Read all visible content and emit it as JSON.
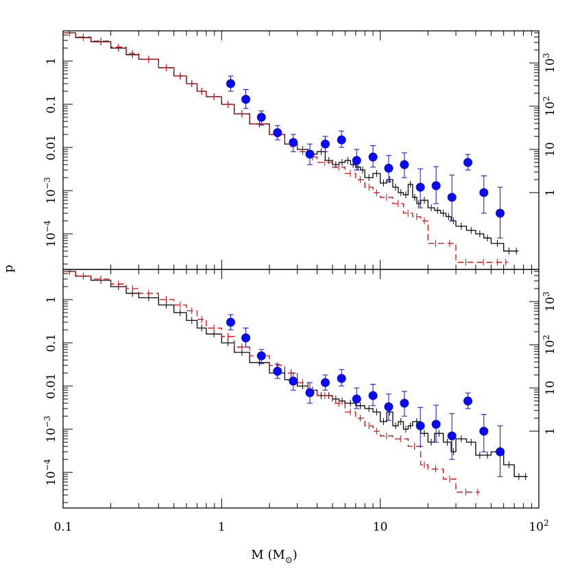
{
  "chart_data": {
    "type": "scatter",
    "xlabel": "M (M",
    "xlabel_sub": "⊙",
    "xlabel_close": ")",
    "ylabel": "p",
    "x_scale": "log",
    "xlim": [
      0.1,
      100
    ],
    "x_ticks": [
      {
        "value": 0.1,
        "label": "0.1"
      },
      {
        "value": 1,
        "label": "1"
      },
      {
        "value": 10,
        "label": "10"
      },
      {
        "value": 100,
        "label": "10",
        "sup": "2"
      }
    ],
    "colors": {
      "black": "#000000",
      "red": "#e00000",
      "blue": "#0a0aee"
    },
    "panels": [
      {
        "name": "top",
        "y_scale": "log",
        "ylim": [
          1.5e-05,
          5.0
        ],
        "left_ticks": [
          {
            "value": 1,
            "label": "1"
          },
          {
            "value": 0.1,
            "label": "0.1"
          },
          {
            "value": 0.01,
            "label": "0.01"
          },
          {
            "value": 0.001,
            "label": "10",
            "sup": "−3"
          },
          {
            "value": 0.0001,
            "label": "10",
            "sup": "−4"
          }
        ],
        "right_ticks": [
          {
            "value": 0.9,
            "label": "10",
            "sup": "3"
          },
          {
            "value": 0.09,
            "label": "10",
            "sup": "2"
          },
          {
            "value": 0.009,
            "label": "10"
          },
          {
            "value": 0.0009,
            "label": "1"
          }
        ],
        "series": [
          {
            "color": "black",
            "style": "solid-step",
            "x": [
              0.1,
              0.12,
              0.15,
              0.2,
              0.25,
              0.3,
              0.4,
              0.5,
              0.6,
              0.7,
              0.8,
              1.0,
              1.2,
              1.5,
              2.0,
              2.5,
              3.0,
              3.5,
              4.0,
              4.5,
              5.0,
              5.5,
              6.0,
              6.5,
              7.0,
              7.5,
              8.0,
              9.0,
              10.0,
              11.0,
              12.0,
              13.0,
              14.0,
              15.0,
              16.0,
              17.0,
              18.0,
              20.0,
              22.0,
              24.0,
              26.0,
              28.0,
              30.0,
              35.0,
              40.0,
              45.0,
              50.0,
              60.0,
              70.0
            ],
            "y": [
              4.5,
              3.5,
              2.8,
              2.0,
              1.4,
              1.1,
              0.7,
              0.45,
              0.3,
              0.2,
              0.15,
              0.1,
              0.06,
              0.035,
              0.02,
              0.012,
              0.009,
              0.007,
              0.008,
              0.005,
              0.004,
              0.0045,
              0.005,
              0.004,
              0.0035,
              0.003,
              0.002,
              0.0025,
              0.0015,
              0.0018,
              0.0012,
              0.0009,
              0.0008,
              0.0014,
              0.0007,
              0.0005,
              0.0006,
              0.0004,
              0.00035,
              0.0003,
              0.00025,
              0.0002,
              0.00015,
              0.00012,
              0.0001,
              8e-05,
              6e-05,
              4e-05,
              4e-05
            ]
          },
          {
            "color": "red",
            "style": "dashed-step",
            "x": [
              0.1,
              0.12,
              0.15,
              0.2,
              0.25,
              0.3,
              0.4,
              0.5,
              0.6,
              0.7,
              0.8,
              1.0,
              1.2,
              1.5,
              2.0,
              2.5,
              3.0,
              3.5,
              4.0,
              5.0,
              6.0,
              7.0,
              8.0,
              9.0,
              10.0,
              12.0,
              14.0,
              16.0,
              18.0,
              20.0,
              25.0,
              30.0,
              40.0,
              50.0,
              60.0
            ],
            "y": [
              4.5,
              3.6,
              2.9,
              2.1,
              1.5,
              1.1,
              0.7,
              0.45,
              0.3,
              0.2,
              0.15,
              0.1,
              0.06,
              0.035,
              0.02,
              0.012,
              0.008,
              0.006,
              0.0045,
              0.0035,
              0.0025,
              0.0018,
              0.0012,
              0.0009,
              0.0007,
              0.0005,
              0.0003,
              0.00025,
              0.0002,
              6e-05,
              6e-05,
              2.2e-05,
              2.2e-05,
              2.2e-05,
              2.2e-05
            ]
          },
          {
            "color": "blue",
            "style": "points",
            "x": [
              1.14,
              1.42,
              1.78,
              2.25,
              2.83,
              3.6,
              4.5,
              5.7,
              7.1,
              9.0,
              11.3,
              14.2,
              17.9,
              22.5,
              28.3,
              35.7,
              45.0,
              57.0
            ],
            "y": [
              0.3,
              0.13,
              0.05,
              0.022,
              0.013,
              0.007,
              0.012,
              0.015,
              0.005,
              0.006,
              0.0033,
              0.004,
              0.0012,
              0.0013,
              0.0007,
              0.0045,
              0.0009,
              0.0003
            ],
            "yerr_hi": [
              0.45,
              0.22,
              0.07,
              0.032,
              0.02,
              0.012,
              0.018,
              0.024,
              0.009,
              0.011,
              0.0065,
              0.0075,
              0.0032,
              0.0036,
              0.0023,
              0.0069,
              0.0022,
              0.0012
            ],
            "yerr_lo": [
              0.2,
              0.08,
              0.033,
              0.015,
              0.008,
              0.004,
              0.008,
              0.01,
              0.003,
              0.0035,
              0.0016,
              0.002,
              0.0004,
              0.0005,
              0.0002,
              0.003,
              0.0003,
              8e-05
            ]
          }
        ]
      },
      {
        "name": "bottom",
        "y_scale": "log",
        "ylim": [
          1.5e-05,
          5.0
        ],
        "left_ticks": [
          {
            "value": 1,
            "label": "1"
          },
          {
            "value": 0.1,
            "label": "0.1"
          },
          {
            "value": 0.01,
            "label": "0.01"
          },
          {
            "value": 0.001,
            "label": "10",
            "sup": "−3"
          },
          {
            "value": 0.0001,
            "label": "10",
            "sup": "−4"
          }
        ],
        "right_ticks": [
          {
            "value": 0.9,
            "label": "10",
            "sup": "3"
          },
          {
            "value": 0.09,
            "label": "10",
            "sup": "2"
          },
          {
            "value": 0.009,
            "label": "10"
          },
          {
            "value": 0.0009,
            "label": "1"
          }
        ],
        "series": [
          {
            "color": "black",
            "style": "solid-step",
            "x": [
              0.1,
              0.12,
              0.15,
              0.2,
              0.25,
              0.3,
              0.4,
              0.5,
              0.6,
              0.7,
              0.8,
              1.0,
              1.2,
              1.5,
              2.0,
              2.5,
              3.0,
              3.5,
              4.0,
              4.5,
              5.0,
              5.5,
              6.0,
              7.0,
              8.0,
              9.0,
              10.0,
              11.0,
              12.0,
              13.0,
              14.0,
              15.0,
              16.0,
              18.0,
              20.0,
              22.0,
              25.0,
              28.0,
              30.0,
              35.0,
              40.0,
              45.0,
              50.0,
              60.0,
              70.0,
              80.0
            ],
            "y": [
              4.5,
              3.5,
              2.8,
              2.0,
              1.4,
              1.1,
              0.75,
              0.5,
              0.33,
              0.22,
              0.16,
              0.1,
              0.06,
              0.035,
              0.02,
              0.014,
              0.01,
              0.008,
              0.006,
              0.006,
              0.005,
              0.0045,
              0.004,
              0.0035,
              0.003,
              0.0025,
              0.0015,
              0.0025,
              0.0012,
              0.0015,
              0.001,
              0.0012,
              0.0015,
              0.0008,
              0.0005,
              0.0008,
              0.0005,
              0.0003,
              0.0006,
              0.0005,
              0.00025,
              0.00025,
              0.0003,
              0.00015,
              8e-05,
              8e-05
            ]
          },
          {
            "color": "red",
            "style": "dashed-step",
            "x": [
              0.1,
              0.12,
              0.15,
              0.2,
              0.25,
              0.3,
              0.4,
              0.5,
              0.6,
              0.7,
              0.8,
              1.0,
              1.2,
              1.5,
              2.0,
              2.5,
              3.0,
              3.5,
              4.0,
              5.0,
              6.0,
              7.0,
              8.0,
              9.0,
              10.0,
              12.0,
              15.0,
              18.0,
              20.0,
              25.0,
              30.0,
              40.0
            ],
            "y": [
              4.5,
              3.5,
              3.0,
              2.3,
              1.8,
              1.4,
              1.0,
              0.75,
              0.55,
              0.35,
              0.22,
              0.14,
              0.08,
              0.05,
              0.03,
              0.02,
              0.012,
              0.008,
              0.006,
              0.004,
              0.0025,
              0.0018,
              0.0012,
              0.0009,
              0.0007,
              0.0006,
              0.0004,
              0.00015,
              0.00012,
              7e-05,
              3.5e-05,
              3.5e-05
            ]
          },
          {
            "color": "blue",
            "style": "points",
            "x": [
              1.14,
              1.42,
              1.78,
              2.25,
              2.83,
              3.6,
              4.5,
              5.7,
              7.1,
              9.0,
              11.3,
              14.2,
              17.9,
              22.5,
              28.3,
              35.7,
              45.0,
              57.0
            ],
            "y": [
              0.3,
              0.13,
              0.05,
              0.022,
              0.013,
              0.007,
              0.012,
              0.015,
              0.005,
              0.006,
              0.0033,
              0.004,
              0.0012,
              0.0013,
              0.0007,
              0.0045,
              0.0009,
              0.0003
            ],
            "yerr_hi": [
              0.45,
              0.22,
              0.07,
              0.032,
              0.02,
              0.012,
              0.018,
              0.024,
              0.009,
              0.011,
              0.0065,
              0.0075,
              0.0032,
              0.0036,
              0.0023,
              0.0069,
              0.0022,
              0.0012
            ],
            "yerr_lo": [
              0.2,
              0.08,
              0.033,
              0.015,
              0.008,
              0.004,
              0.008,
              0.01,
              0.003,
              0.0035,
              0.0016,
              0.002,
              0.0004,
              0.0005,
              0.0002,
              0.003,
              0.0003,
              8e-05
            ]
          }
        ]
      }
    ]
  }
}
